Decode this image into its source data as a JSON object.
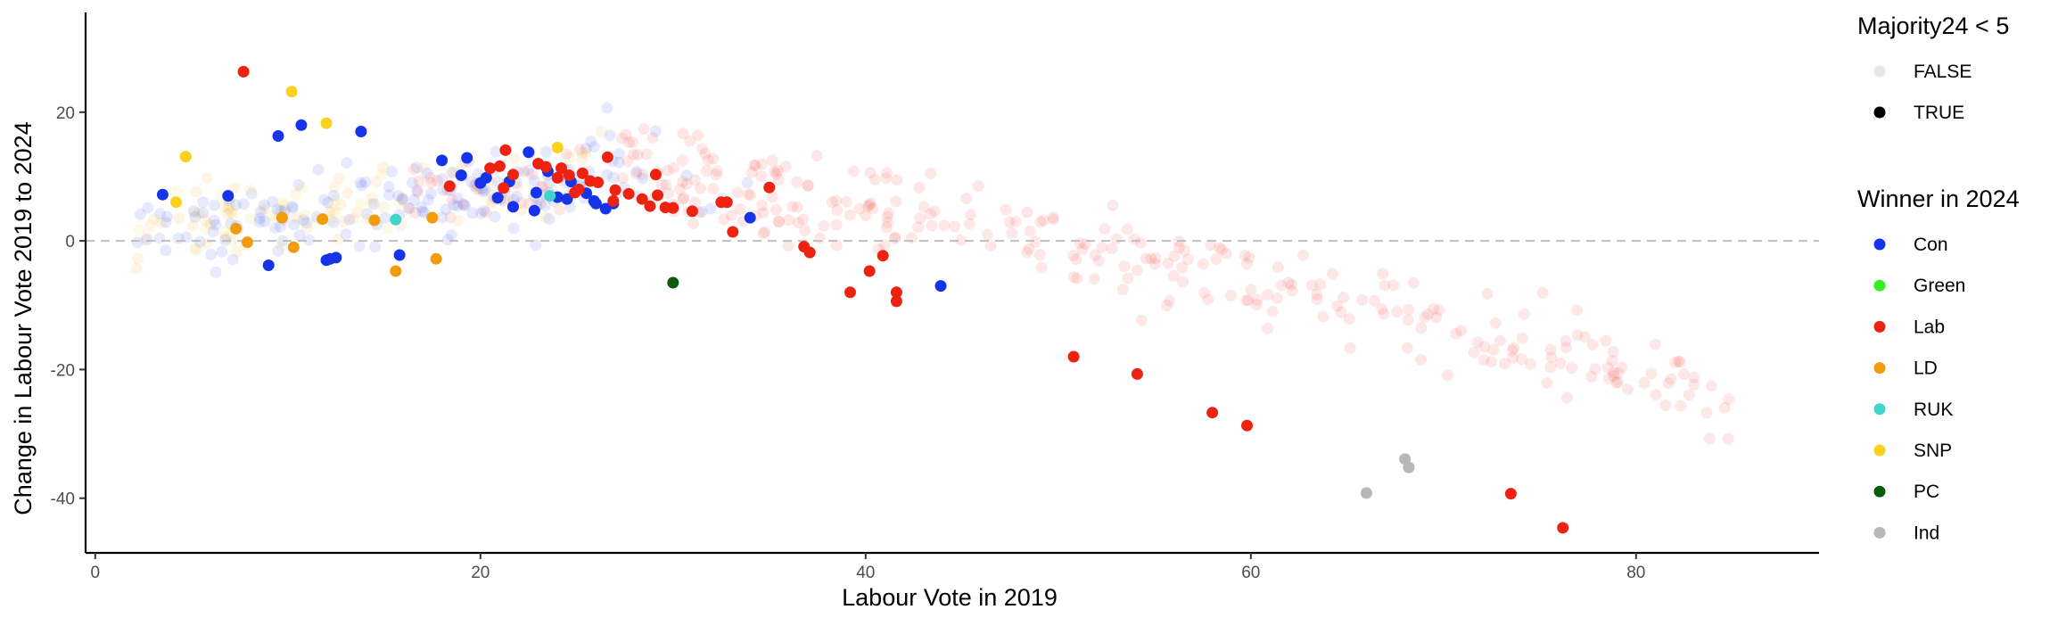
{
  "chart_data": {
    "type": "scatter",
    "xlabel": "Labour Vote in 2019",
    "ylabel": "Change in Labour Vote 2019 to 2024",
    "xlim": [
      -0.5,
      89.5
    ],
    "ylim": [
      -48.5,
      35.5
    ],
    "x_ticks": [
      0,
      20,
      40,
      60,
      80
    ],
    "y_ticks": [
      -40,
      -20,
      0,
      20
    ],
    "x_tick_labels": [
      "0",
      "20",
      "40",
      "60",
      "80"
    ],
    "y_tick_labels": [
      "-40",
      "-20",
      "0",
      "20"
    ],
    "reference_line": {
      "y": 0,
      "style": "dashed",
      "color": "#bfbfbf"
    },
    "grid": false,
    "legend_placement": "right",
    "legend_alpha": {
      "title": "Majority24 < 5",
      "items": [
        {
          "label": "FALSE",
          "color": "#e6e6e6"
        },
        {
          "label": "TRUE",
          "color": "#000000"
        }
      ]
    },
    "legend_winner": {
      "title": "Winner in 2024",
      "items": [
        {
          "label": "Con",
          "color": "#1533e8"
        },
        {
          "label": "Green",
          "color": "#33ee22"
        },
        {
          "label": "Lab",
          "color": "#ee2211"
        },
        {
          "label": "LD",
          "color": "#f29b0c"
        },
        {
          "label": "RUK",
          "color": "#3fd6c9"
        },
        {
          "label": "SNP",
          "color": "#fad11c"
        },
        {
          "label": "PC",
          "color": "#0a5c0a"
        },
        {
          "label": "Ind",
          "color": "#b7b7b7"
        }
      ]
    },
    "series": [
      {
        "winner": "Con",
        "highlighted": true,
        "points": [
          [
            3.5,
            7.2
          ],
          [
            6.9,
            7.0
          ],
          [
            9.0,
            -3.8
          ],
          [
            9.5,
            16.3
          ],
          [
            10.7,
            18.0
          ],
          [
            12.0,
            -3.0
          ],
          [
            12.2,
            -2.8
          ],
          [
            12.5,
            -2.6
          ],
          [
            13.8,
            17.0
          ],
          [
            15.8,
            -2.2
          ],
          [
            18.0,
            12.5
          ],
          [
            19.0,
            10.2
          ],
          [
            19.3,
            12.9
          ],
          [
            20.0,
            9.0
          ],
          [
            20.3,
            9.8
          ],
          [
            20.9,
            6.7
          ],
          [
            21.5,
            9.2
          ],
          [
            21.7,
            5.3
          ],
          [
            22.5,
            13.8
          ],
          [
            22.8,
            4.7
          ],
          [
            22.9,
            7.5
          ],
          [
            23.5,
            10.8
          ],
          [
            24.0,
            6.8
          ],
          [
            24.5,
            6.5
          ],
          [
            24.7,
            9.2
          ],
          [
            25.5,
            7.4
          ],
          [
            25.9,
            6.2
          ],
          [
            26.0,
            5.8
          ],
          [
            26.5,
            5.0
          ],
          [
            26.9,
            5.8
          ],
          [
            34.0,
            3.6
          ],
          [
            43.9,
            -7.0
          ]
        ]
      },
      {
        "winner": "Lab",
        "highlighted": true,
        "points": [
          [
            7.7,
            26.3
          ],
          [
            18.4,
            8.5
          ],
          [
            20.5,
            11.3
          ],
          [
            21.0,
            11.6
          ],
          [
            21.2,
            8.2
          ],
          [
            21.3,
            14.1
          ],
          [
            21.7,
            10.3
          ],
          [
            23.0,
            12.0
          ],
          [
            23.4,
            11.5
          ],
          [
            24.0,
            9.8
          ],
          [
            24.2,
            11.3
          ],
          [
            24.6,
            10.2
          ],
          [
            24.9,
            7.5
          ],
          [
            25.1,
            8.0
          ],
          [
            25.3,
            10.5
          ],
          [
            25.7,
            9.3
          ],
          [
            26.1,
            9.1
          ],
          [
            26.6,
            13.0
          ],
          [
            26.9,
            6.2
          ],
          [
            27.0,
            7.9
          ],
          [
            27.7,
            7.3
          ],
          [
            28.4,
            6.5
          ],
          [
            28.8,
            5.4
          ],
          [
            29.1,
            10.3
          ],
          [
            29.2,
            7.1
          ],
          [
            29.6,
            5.2
          ],
          [
            30.0,
            5.1
          ],
          [
            31.0,
            4.6
          ],
          [
            32.5,
            6.0
          ],
          [
            32.8,
            6.0
          ],
          [
            33.1,
            1.4
          ],
          [
            35.0,
            8.3
          ],
          [
            36.8,
            -0.9
          ],
          [
            37.1,
            -1.8
          ],
          [
            39.2,
            -8.0
          ],
          [
            40.2,
            -4.7
          ],
          [
            40.9,
            -2.3
          ],
          [
            41.6,
            -8.0
          ],
          [
            41.6,
            -9.4
          ],
          [
            50.8,
            -18.0
          ],
          [
            54.1,
            -20.7
          ],
          [
            58.0,
            -26.7
          ],
          [
            59.8,
            -28.7
          ],
          [
            73.5,
            -39.3
          ],
          [
            76.2,
            -44.6
          ]
        ]
      },
      {
        "winner": "LD",
        "highlighted": true,
        "points": [
          [
            7.3,
            1.9
          ],
          [
            7.9,
            -0.2
          ],
          [
            9.7,
            3.6
          ],
          [
            10.3,
            -1.0
          ],
          [
            11.8,
            3.4
          ],
          [
            14.5,
            3.2
          ],
          [
            15.6,
            -4.7
          ],
          [
            17.5,
            3.6
          ],
          [
            17.7,
            -2.8
          ]
        ]
      },
      {
        "winner": "RUK",
        "highlighted": true,
        "points": [
          [
            15.6,
            3.3
          ],
          [
            23.6,
            7.0
          ]
        ]
      },
      {
        "winner": "SNP",
        "highlighted": true,
        "points": [
          [
            4.2,
            6.0
          ],
          [
            4.7,
            13.1
          ],
          [
            10.2,
            23.2
          ],
          [
            12.0,
            18.3
          ],
          [
            24.0,
            14.5
          ]
        ]
      },
      {
        "winner": "PC",
        "highlighted": true,
        "points": [
          [
            30.0,
            -6.5
          ]
        ]
      },
      {
        "winner": "Ind",
        "highlighted": true,
        "points": [
          [
            66.0,
            -39.2
          ],
          [
            68.0,
            -33.9
          ],
          [
            68.2,
            -35.2
          ]
        ]
      }
    ]
  }
}
